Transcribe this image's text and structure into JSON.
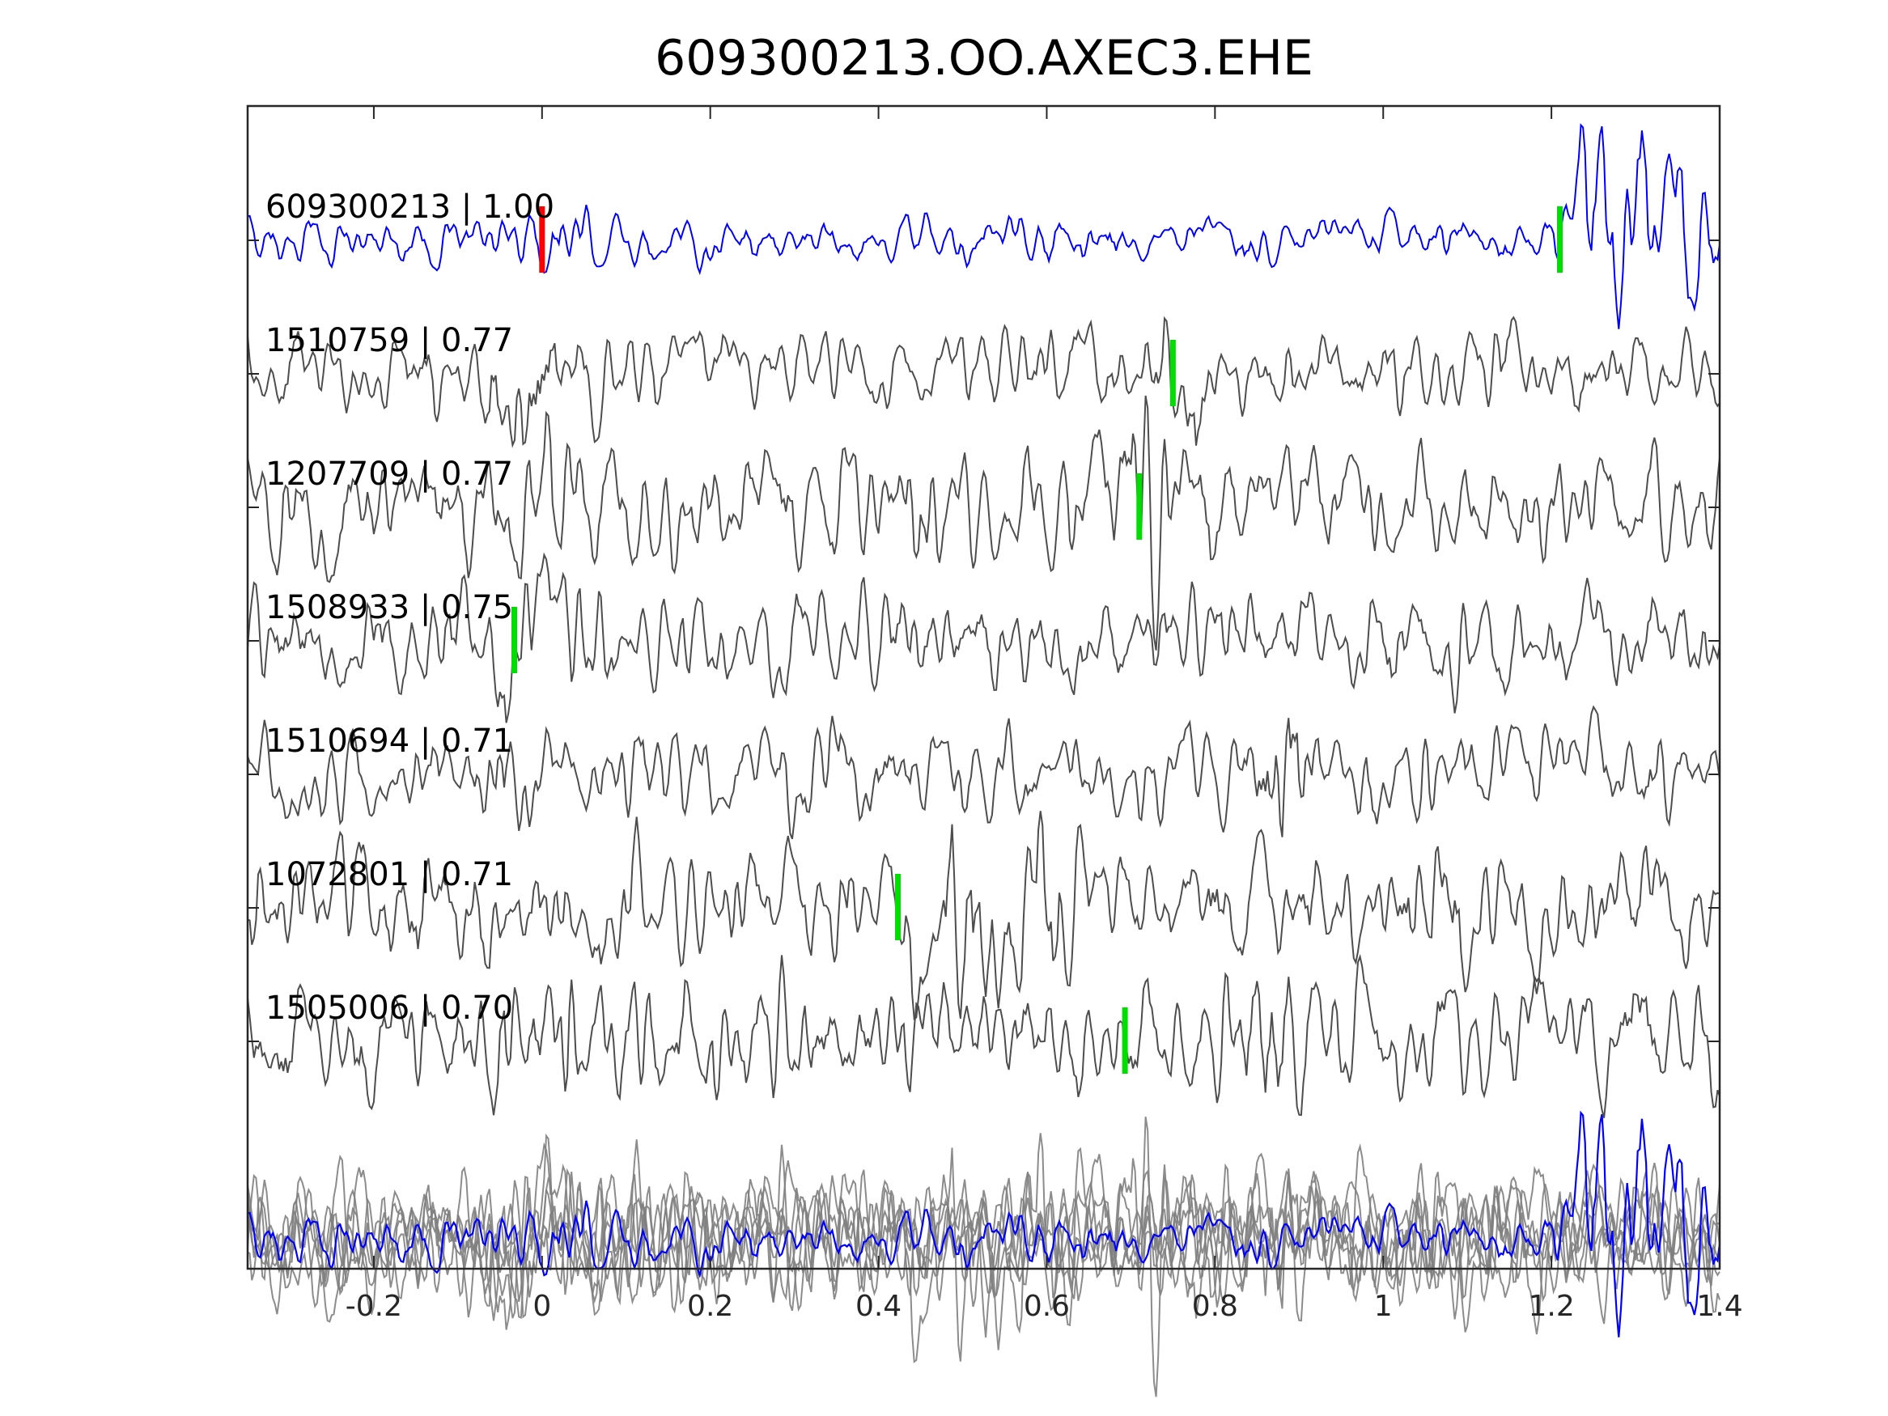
{
  "chart_data": {
    "type": "line",
    "title": "609300213.OO.AXEC3.EHE",
    "xlim": [
      -0.35,
      1.4
    ],
    "x_ticks": [
      -0.2,
      0,
      0.2,
      0.4,
      0.6,
      0.8,
      1,
      1.2,
      1.4
    ],
    "x_tick_labels": [
      "-0.2",
      "0",
      "0.2",
      "0.4",
      "0.6",
      "0.8",
      "1",
      "1.2",
      "1.4"
    ],
    "grid": false,
    "colors": {
      "template": "#0000ff",
      "neighbor": "#4d4d4d",
      "stack": "#808080",
      "pick_red": "#ff0000",
      "pick_green": "#00dd00"
    },
    "traces": [
      {
        "label": "609300213 | 1.00",
        "color": "template",
        "amp": 0.3,
        "picks": [
          {
            "x": 0.0,
            "color": "pick_red"
          },
          {
            "x": 1.21,
            "color": "pick_green"
          }
        ]
      },
      {
        "label": "1510759 | 0.77",
        "color": "neighbor",
        "amp": 0.55,
        "picks": [
          {
            "x": 0.75,
            "color": "pick_green"
          }
        ]
      },
      {
        "label": "1207709 | 0.77",
        "color": "neighbor",
        "amp": 0.7,
        "picks": [
          {
            "x": 0.71,
            "color": "pick_green"
          }
        ]
      },
      {
        "label": "1508933 | 0.75",
        "color": "neighbor",
        "amp": 0.65,
        "picks": [
          {
            "x": -0.033,
            "color": "pick_green"
          }
        ]
      },
      {
        "label": "1510694 | 0.71",
        "color": "neighbor",
        "amp": 0.6,
        "picks": []
      },
      {
        "label": "1072801 | 0.71",
        "color": "neighbor",
        "amp": 0.75,
        "picks": [
          {
            "x": 0.423,
            "color": "pick_green"
          }
        ]
      },
      {
        "label": "1505006 | 0.70",
        "color": "neighbor",
        "amp": 0.75,
        "picks": [
          {
            "x": 0.693,
            "color": "pick_green"
          }
        ]
      }
    ]
  }
}
